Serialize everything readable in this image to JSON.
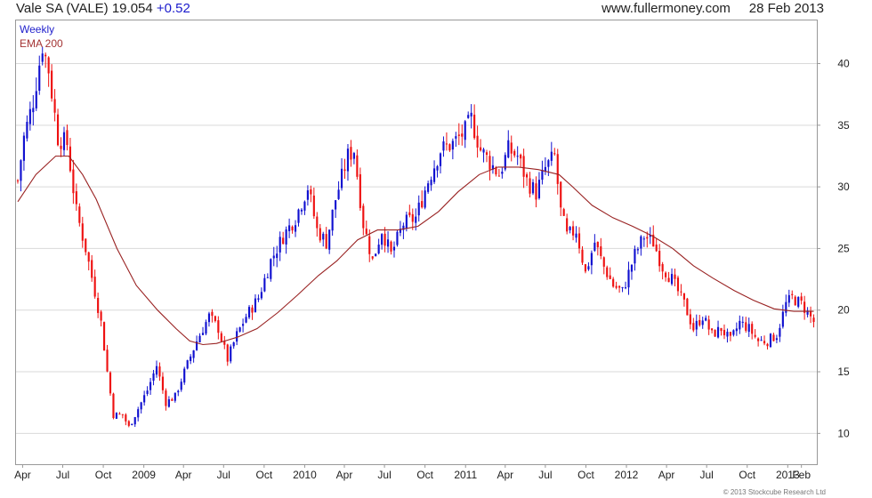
{
  "header": {
    "symbol": "Vale SA (VALE)",
    "price": "19.054",
    "change": "+0.52",
    "site": "www.fullermoney.com",
    "date": "28 Feb 2013"
  },
  "legend": {
    "frequency": "Weekly",
    "indicator": "EMA 200"
  },
  "copyright": "© 2013 Stockcube Research Ltd",
  "colors": {
    "up": "#1010d0",
    "down": "#ee1111",
    "ema": "#992222",
    "grid": "#d9d9d9",
    "change_text": "#1a1acc"
  },
  "chart_data": {
    "type": "candlestick",
    "frequency": "weekly",
    "ylim": [
      7.5,
      43.5
    ],
    "y_ticks": [
      10,
      15,
      20,
      25,
      30,
      35,
      40
    ],
    "x_range": [
      "2008-03-17",
      "2013-03-08"
    ],
    "x_ticks": [
      {
        "label": "Apr",
        "date": "2008-04-01"
      },
      {
        "label": "Jul",
        "date": "2008-07-01"
      },
      {
        "label": "Oct",
        "date": "2008-10-01"
      },
      {
        "label": "2009",
        "date": "2009-01-01"
      },
      {
        "label": "Apr",
        "date": "2009-04-01"
      },
      {
        "label": "Jul",
        "date": "2009-07-01"
      },
      {
        "label": "Oct",
        "date": "2009-10-01"
      },
      {
        "label": "2010",
        "date": "2010-01-01"
      },
      {
        "label": "Apr",
        "date": "2010-04-01"
      },
      {
        "label": "Jul",
        "date": "2010-07-01"
      },
      {
        "label": "Oct",
        "date": "2010-10-01"
      },
      {
        "label": "2011",
        "date": "2011-01-01"
      },
      {
        "label": "Apr",
        "date": "2011-04-01"
      },
      {
        "label": "Jul",
        "date": "2011-07-01"
      },
      {
        "label": "Oct",
        "date": "2011-10-01"
      },
      {
        "label": "2012",
        "date": "2012-01-01"
      },
      {
        "label": "Apr",
        "date": "2012-04-01"
      },
      {
        "label": "Jul",
        "date": "2012-07-01"
      },
      {
        "label": "Oct",
        "date": "2012-10-01"
      },
      {
        "label": "2013",
        "date": "2013-01-01"
      },
      {
        "label": "Feb",
        "date": "2013-02-01"
      }
    ],
    "close_anchors": [
      [
        "2008-03-21",
        30.5
      ],
      [
        "2008-04-04",
        34.0
      ],
      [
        "2008-04-25",
        37.0
      ],
      [
        "2008-05-16",
        41.5
      ],
      [
        "2008-05-30",
        39.5
      ],
      [
        "2008-06-20",
        34.0
      ],
      [
        "2008-07-11",
        33.5
      ],
      [
        "2008-08-01",
        28.0
      ],
      [
        "2008-08-22",
        25.0
      ],
      [
        "2008-09-12",
        21.5
      ],
      [
        "2008-09-26",
        19.0
      ],
      [
        "2008-10-10",
        15.0
      ],
      [
        "2008-10-24",
        11.5
      ],
      [
        "2008-11-14",
        11.5
      ],
      [
        "2008-11-28",
        10.5
      ],
      [
        "2008-12-19",
        12.0
      ],
      [
        "2009-01-09",
        13.5
      ],
      [
        "2009-01-30",
        15.5
      ],
      [
        "2009-02-20",
        12.5
      ],
      [
        "2009-03-13",
        13.0
      ],
      [
        "2009-04-03",
        15.0
      ],
      [
        "2009-05-01",
        17.5
      ],
      [
        "2009-05-29",
        19.5
      ],
      [
        "2009-06-19",
        18.5
      ],
      [
        "2009-07-10",
        16.0
      ],
      [
        "2009-07-31",
        18.0
      ],
      [
        "2009-08-21",
        19.5
      ],
      [
        "2009-09-18",
        21.0
      ],
      [
        "2009-10-16",
        24.0
      ],
      [
        "2009-11-13",
        26.0
      ],
      [
        "2009-12-11",
        27.5
      ],
      [
        "2010-01-08",
        30.0
      ],
      [
        "2010-01-29",
        26.5
      ],
      [
        "2010-02-19",
        25.5
      ],
      [
        "2010-03-12",
        29.0
      ],
      [
        "2010-04-09",
        32.5
      ],
      [
        "2010-04-23",
        33.0
      ],
      [
        "2010-05-14",
        27.0
      ],
      [
        "2010-06-04",
        24.0
      ],
      [
        "2010-06-25",
        26.5
      ],
      [
        "2010-07-16",
        24.5
      ],
      [
        "2010-08-13",
        27.0
      ],
      [
        "2010-09-10",
        27.5
      ],
      [
        "2010-10-08",
        30.5
      ],
      [
        "2010-11-05",
        33.0
      ],
      [
        "2010-12-03",
        33.5
      ],
      [
        "2010-12-31",
        34.5
      ],
      [
        "2011-01-14",
        35.5
      ],
      [
        "2011-02-04",
        33.0
      ],
      [
        "2011-02-25",
        32.0
      ],
      [
        "2011-03-18",
        31.0
      ],
      [
        "2011-04-08",
        33.0
      ],
      [
        "2011-04-29",
        32.5
      ],
      [
        "2011-05-20",
        30.5
      ],
      [
        "2011-06-10",
        29.5
      ],
      [
        "2011-07-01",
        31.5
      ],
      [
        "2011-07-22",
        32.5
      ],
      [
        "2011-08-05",
        28.0
      ],
      [
        "2011-08-19",
        26.0
      ],
      [
        "2011-09-09",
        26.5
      ],
      [
        "2011-09-30",
        23.0
      ],
      [
        "2011-10-21",
        25.5
      ],
      [
        "2011-11-11",
        23.5
      ],
      [
        "2011-12-02",
        22.0
      ],
      [
        "2011-12-23",
        21.5
      ],
      [
        "2012-01-20",
        24.5
      ],
      [
        "2012-02-10",
        26.0
      ],
      [
        "2012-03-02",
        25.5
      ],
      [
        "2012-03-23",
        23.5
      ],
      [
        "2012-04-13",
        22.5
      ],
      [
        "2012-05-11",
        20.5
      ],
      [
        "2012-06-01",
        18.5
      ],
      [
        "2012-06-22",
        19.5
      ],
      [
        "2012-07-13",
        18.0
      ],
      [
        "2012-08-03",
        18.5
      ],
      [
        "2012-08-24",
        17.5
      ],
      [
        "2012-09-14",
        19.0
      ],
      [
        "2012-10-05",
        18.5
      ],
      [
        "2012-10-26",
        17.5
      ],
      [
        "2012-11-16",
        17.5
      ],
      [
        "2012-12-07",
        18.0
      ],
      [
        "2012-12-28",
        20.5
      ],
      [
        "2013-01-11",
        21.0
      ],
      [
        "2013-02-01",
        20.5
      ],
      [
        "2013-02-15",
        19.8
      ],
      [
        "2013-03-01",
        19.054
      ]
    ],
    "ema_200": [
      [
        "2008-03-21",
        28.8
      ],
      [
        "2008-05-01",
        31.0
      ],
      [
        "2008-06-15",
        32.5
      ],
      [
        "2008-07-15",
        32.5
      ],
      [
        "2008-08-15",
        31.0
      ],
      [
        "2008-09-15",
        29.0
      ],
      [
        "2008-11-01",
        25.0
      ],
      [
        "2008-12-15",
        22.0
      ],
      [
        "2009-02-01",
        20.0
      ],
      [
        "2009-03-15",
        18.5
      ],
      [
        "2009-04-15",
        17.5
      ],
      [
        "2009-05-15",
        17.2
      ],
      [
        "2009-06-15",
        17.3
      ],
      [
        "2009-08-01",
        17.8
      ],
      [
        "2009-09-15",
        18.5
      ],
      [
        "2009-11-01",
        19.8
      ],
      [
        "2009-12-15",
        21.2
      ],
      [
        "2010-02-01",
        22.8
      ],
      [
        "2010-03-15",
        24.0
      ],
      [
        "2010-05-01",
        25.7
      ],
      [
        "2010-06-15",
        26.5
      ],
      [
        "2010-08-01",
        26.5
      ],
      [
        "2010-09-15",
        26.8
      ],
      [
        "2010-11-01",
        28.0
      ],
      [
        "2010-12-15",
        29.6
      ],
      [
        "2011-02-01",
        31.0
      ],
      [
        "2011-03-15",
        31.6
      ],
      [
        "2011-05-01",
        31.6
      ],
      [
        "2011-06-15",
        31.4
      ],
      [
        "2011-08-01",
        31.0
      ],
      [
        "2011-09-01",
        30.0
      ],
      [
        "2011-10-15",
        28.5
      ],
      [
        "2011-12-01",
        27.5
      ],
      [
        "2012-01-15",
        26.8
      ],
      [
        "2012-03-01",
        26.0
      ],
      [
        "2012-04-15",
        25.0
      ],
      [
        "2012-06-01",
        23.6
      ],
      [
        "2012-07-15",
        22.6
      ],
      [
        "2012-09-01",
        21.6
      ],
      [
        "2012-10-15",
        20.8
      ],
      [
        "2012-12-01",
        20.1
      ],
      [
        "2013-01-15",
        19.9
      ],
      [
        "2013-03-01",
        19.9
      ]
    ]
  }
}
